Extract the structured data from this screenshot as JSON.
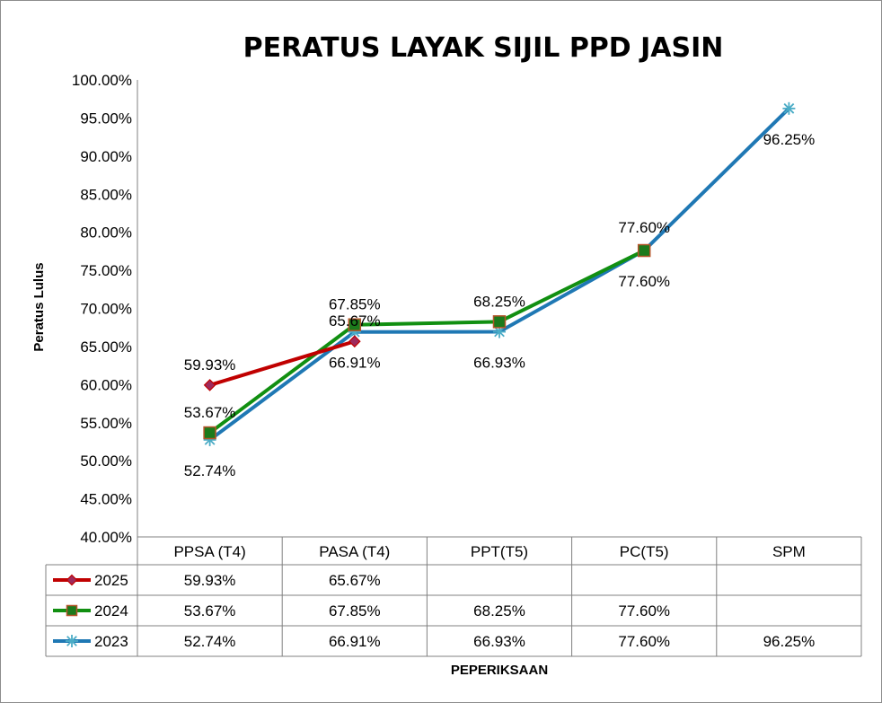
{
  "chart_data": {
    "type": "line",
    "title": "PERATUS LAYAK SIJIL  PPD JASIN",
    "xlabel": "PEPERIKSAAN",
    "ylabel": "Peratus Lulus",
    "ylim": [
      40,
      100
    ],
    "ytick_labels": [
      "100.00%",
      "95.00%",
      "90.00%",
      "85.00%",
      "80.00%",
      "75.00%",
      "70.00%",
      "65.00%",
      "60.00%",
      "55.00%",
      "50.00%",
      "45.00%",
      "40.00%"
    ],
    "categories": [
      "PPSA (T4)",
      "PASA (T4)",
      "PPT(T5)",
      "PC(T5)",
      "SPM"
    ],
    "grid": false,
    "legend": "data-table",
    "series": [
      {
        "name": "2025",
        "color": "#C00000",
        "marker": "diamond",
        "marker_color": "#9E2A5C",
        "values": [
          59.93,
          65.67,
          null,
          null,
          null
        ],
        "labels": [
          "59.93%",
          "65.67%",
          "",
          "",
          ""
        ]
      },
      {
        "name": "2024",
        "color": "#118F11",
        "marker": "square",
        "marker_color": "#1C7A1C",
        "values": [
          53.67,
          67.85,
          68.25,
          77.6,
          null
        ],
        "labels": [
          "53.67%",
          "67.85%",
          "68.25%",
          "77.60%",
          ""
        ]
      },
      {
        "name": "2023",
        "color": "#1F78B4",
        "marker": "star",
        "marker_color": "#4BACC6",
        "values": [
          52.74,
          66.91,
          66.93,
          77.6,
          96.25
        ],
        "labels": [
          "52.74%",
          "66.91%",
          "66.93%",
          "77.60%",
          "96.25%"
        ]
      }
    ]
  }
}
